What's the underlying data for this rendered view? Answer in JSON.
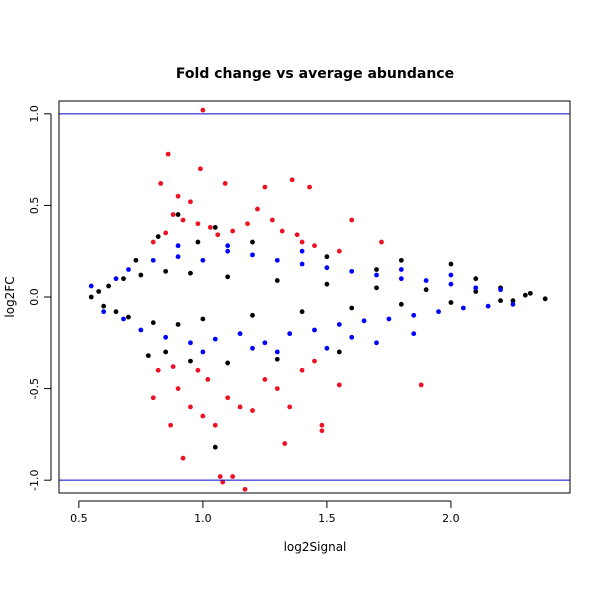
{
  "chart_data": {
    "type": "scatter",
    "title": "Fold change vs average abundance",
    "xlabel": "log2Signal",
    "ylabel": "log2FC",
    "xlim": [
      0.42,
      2.48
    ],
    "ylim": [
      -1.07,
      1.07
    ],
    "x_ticks": [
      0.5,
      1.0,
      1.5,
      2.0
    ],
    "x_tick_labels": [
      "0.5",
      "1.0",
      "1.5",
      "2.0"
    ],
    "y_ticks": [
      -1.0,
      -0.5,
      0.0,
      0.5,
      1.0
    ],
    "y_tick_labels": [
      "-1.0",
      "-0.5",
      "0.0",
      "0.5",
      "1.0"
    ],
    "hlines": [
      {
        "y": 1.0,
        "color": "#0000cc"
      },
      {
        "y": -1.0,
        "color": "#0000cc"
      }
    ],
    "grid": false,
    "legend": "none",
    "colors": {
      "core": "#000000",
      "middle": "#0000ff",
      "significant": "#ee1122"
    },
    "series": [
      {
        "color": "#000000",
        "description_of_values": "dense core (approx. |log2FC| small)",
        "points": [
          [
            0.55,
            0.0
          ],
          [
            0.58,
            0.03
          ],
          [
            0.6,
            -0.05
          ],
          [
            0.62,
            0.06
          ],
          [
            0.65,
            -0.08
          ],
          [
            0.68,
            0.1
          ],
          [
            0.7,
            -0.11
          ],
          [
            0.75,
            0.12
          ],
          [
            0.8,
            -0.14
          ],
          [
            0.85,
            0.14
          ],
          [
            0.9,
            -0.15
          ],
          [
            0.95,
            0.13
          ],
          [
            1.0,
            -0.12
          ],
          [
            1.1,
            0.11
          ],
          [
            1.2,
            -0.1
          ],
          [
            1.3,
            0.09
          ],
          [
            1.4,
            -0.08
          ],
          [
            1.5,
            0.07
          ],
          [
            1.6,
            -0.06
          ],
          [
            1.7,
            0.05
          ],
          [
            1.8,
            -0.04
          ],
          [
            1.9,
            0.04
          ],
          [
            2.0,
            -0.03
          ],
          [
            2.1,
            0.03
          ],
          [
            2.2,
            -0.02
          ],
          [
            2.3,
            0.01
          ],
          [
            2.38,
            -0.01
          ],
          [
            2.32,
            0.02
          ],
          [
            2.25,
            -0.02
          ],
          [
            0.73,
            0.2
          ],
          [
            0.82,
            0.33
          ],
          [
            0.9,
            0.45
          ],
          [
            0.98,
            0.3
          ],
          [
            1.05,
            0.38
          ],
          [
            0.95,
            -0.35
          ],
          [
            0.85,
            -0.3
          ],
          [
            1.1,
            -0.36
          ],
          [
            1.05,
            -0.82
          ],
          [
            1.2,
            0.3
          ],
          [
            1.3,
            -0.34
          ],
          [
            1.5,
            0.22
          ],
          [
            1.7,
            0.15
          ],
          [
            1.8,
            0.2
          ],
          [
            2.0,
            0.18
          ],
          [
            2.1,
            0.1
          ],
          [
            2.2,
            0.05
          ],
          [
            1.55,
            -0.3
          ],
          [
            0.78,
            -0.32
          ]
        ]
      },
      {
        "color": "#0000ff",
        "description_of_values": "moderate changes",
        "points": [
          [
            0.7,
            0.15
          ],
          [
            0.75,
            -0.18
          ],
          [
            0.8,
            0.2
          ],
          [
            0.85,
            -0.22
          ],
          [
            0.9,
            0.22
          ],
          [
            0.95,
            -0.25
          ],
          [
            1.0,
            0.2
          ],
          [
            1.05,
            -0.23
          ],
          [
            1.1,
            0.25
          ],
          [
            1.15,
            -0.2
          ],
          [
            1.2,
            0.23
          ],
          [
            1.25,
            -0.25
          ],
          [
            1.3,
            0.2
          ],
          [
            1.35,
            -0.2
          ],
          [
            1.4,
            0.18
          ],
          [
            1.45,
            -0.18
          ],
          [
            1.5,
            0.16
          ],
          [
            1.55,
            -0.15
          ],
          [
            1.6,
            0.14
          ],
          [
            1.65,
            -0.13
          ],
          [
            1.7,
            0.12
          ],
          [
            1.75,
            -0.12
          ],
          [
            1.8,
            0.1
          ],
          [
            1.85,
            -0.1
          ],
          [
            1.9,
            0.09
          ],
          [
            1.95,
            -0.08
          ],
          [
            2.0,
            0.07
          ],
          [
            2.05,
            -0.06
          ],
          [
            2.1,
            0.05
          ],
          [
            2.15,
            -0.05
          ],
          [
            2.2,
            0.04
          ],
          [
            2.25,
            -0.04
          ],
          [
            0.6,
            -0.08
          ],
          [
            0.65,
            0.1
          ],
          [
            1.7,
            -0.25
          ],
          [
            1.5,
            -0.28
          ],
          [
            1.3,
            -0.3
          ],
          [
            1.4,
            0.25
          ],
          [
            0.9,
            0.28
          ],
          [
            1.0,
            -0.3
          ],
          [
            1.2,
            -0.28
          ],
          [
            1.1,
            0.28
          ],
          [
            1.6,
            -0.22
          ],
          [
            1.8,
            0.15
          ],
          [
            1.85,
            -0.2
          ],
          [
            2.0,
            0.12
          ],
          [
            0.55,
            0.06
          ],
          [
            0.68,
            -0.12
          ]
        ]
      },
      {
        "color": "#ee1122",
        "description_of_values": "significant",
        "points": [
          [
            1.0,
            1.02
          ],
          [
            0.86,
            0.78
          ],
          [
            0.99,
            0.7
          ],
          [
            0.83,
            0.62
          ],
          [
            1.36,
            0.64
          ],
          [
            1.43,
            0.6
          ],
          [
            1.25,
            0.6
          ],
          [
            1.09,
            0.62
          ],
          [
            0.9,
            0.55
          ],
          [
            0.95,
            0.52
          ],
          [
            0.88,
            0.45
          ],
          [
            0.92,
            0.42
          ],
          [
            0.98,
            0.4
          ],
          [
            1.03,
            0.38
          ],
          [
            1.06,
            0.34
          ],
          [
            1.12,
            0.36
          ],
          [
            1.18,
            0.4
          ],
          [
            1.22,
            0.48
          ],
          [
            1.28,
            0.42
          ],
          [
            1.32,
            0.36
          ],
          [
            1.38,
            0.34
          ],
          [
            1.6,
            0.42
          ],
          [
            1.72,
            0.3
          ],
          [
            1.4,
            0.3
          ],
          [
            0.8,
            0.3
          ],
          [
            0.85,
            0.35
          ],
          [
            1.45,
            0.28
          ],
          [
            1.55,
            0.25
          ],
          [
            0.8,
            -0.55
          ],
          [
            0.82,
            -0.4
          ],
          [
            0.9,
            -0.5
          ],
          [
            0.95,
            -0.6
          ],
          [
            1.0,
            -0.65
          ],
          [
            1.05,
            -0.7
          ],
          [
            0.87,
            -0.7
          ],
          [
            0.92,
            -0.88
          ],
          [
            1.07,
            -0.98
          ],
          [
            1.08,
            -1.01
          ],
          [
            1.12,
            -0.98
          ],
          [
            1.17,
            -1.05
          ],
          [
            1.15,
            -0.6
          ],
          [
            1.2,
            -0.62
          ],
          [
            1.25,
            -0.45
          ],
          [
            1.3,
            -0.5
          ],
          [
            1.33,
            -0.8
          ],
          [
            1.48,
            -0.7
          ],
          [
            1.48,
            -0.73
          ],
          [
            1.55,
            -0.48
          ],
          [
            1.88,
            -0.48
          ],
          [
            1.35,
            -0.6
          ],
          [
            0.98,
            -0.4
          ],
          [
            1.02,
            -0.45
          ],
          [
            1.1,
            -0.55
          ],
          [
            0.88,
            -0.38
          ],
          [
            1.4,
            -0.4
          ],
          [
            1.45,
            -0.35
          ]
        ]
      }
    ]
  }
}
